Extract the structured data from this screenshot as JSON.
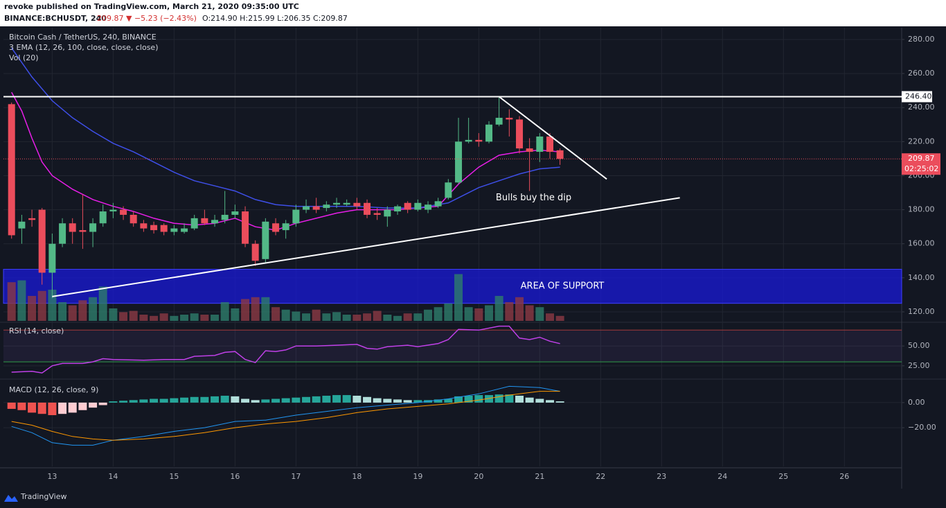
{
  "chart_data": {
    "type": "candlestick",
    "header": {
      "published": "revoke published on TradingView.com, March 21, 2020 09:35:00 UTC",
      "symbol": "BINANCE:BCHUSDT, 240",
      "last": "209.87 ▼ −5.23 (−2.43%)",
      "ohlc": "O:214.90 H:215.99 L:206.35 C:209.87"
    },
    "title": "Bitcoin Cash / TetherUS, 240, BINANCE",
    "ema_label": "3 EMA (12, 26, 100, close, close, close)",
    "volume_label": "Vol (20)",
    "footer": "TradingView",
    "xlim": [
      12.2,
      26.94
    ],
    "xticks": [
      13,
      14,
      15,
      16,
      17,
      18,
      19,
      20,
      21,
      22,
      23,
      24,
      25,
      26
    ],
    "ylim": [
      114.7,
      286.9
    ],
    "yticks": [
      {
        "value": 120,
        "label": "120.00"
      },
      {
        "value": 140,
        "label": "140.00"
      },
      {
        "value": 160,
        "label": "160.00"
      },
      {
        "value": 180,
        "label": "180.00"
      },
      {
        "value": 200,
        "label": "200.00"
      },
      {
        "value": 220,
        "label": "220.00"
      },
      {
        "value": 240,
        "label": "240.00"
      },
      {
        "value": 260,
        "label": "260.00"
      },
      {
        "value": 280,
        "label": "280.00"
      }
    ],
    "grid": true,
    "candles": {
      "up_color": "#53b987",
      "down_color": "#eb4d5c",
      "x": [
        12.333,
        12.5,
        12.667,
        12.833,
        13.0,
        13.167,
        13.333,
        13.5,
        13.667,
        13.833,
        14.0,
        14.167,
        14.333,
        14.5,
        14.667,
        14.833,
        15.0,
        15.167,
        15.333,
        15.5,
        15.667,
        15.833,
        16.0,
        16.167,
        16.333,
        16.5,
        16.667,
        16.833,
        17.0,
        17.167,
        17.333,
        17.5,
        17.667,
        17.833,
        18.0,
        18.167,
        18.333,
        18.5,
        18.667,
        18.833,
        19.0,
        19.167,
        19.333,
        19.5,
        19.667,
        19.833,
        20.0,
        20.167,
        20.333,
        20.5,
        20.667,
        20.833,
        21.0,
        21.167,
        21.333
      ],
      "open": [
        242,
        169,
        175,
        180,
        143,
        160,
        172,
        168,
        167,
        172,
        179,
        180,
        177,
        172,
        171,
        171,
        167,
        167,
        169,
        175,
        172,
        174,
        177,
        179,
        160,
        151,
        172,
        168,
        172,
        180,
        182,
        181,
        183,
        183,
        184,
        184,
        178,
        176,
        179,
        184,
        180,
        180,
        182,
        187,
        196,
        220,
        221,
        220,
        230,
        234,
        233,
        216,
        214,
        223,
        214.9
      ],
      "high": [
        243,
        177,
        180,
        181,
        166,
        175,
        175,
        189,
        175,
        183,
        184,
        182,
        179,
        174,
        173,
        172,
        171,
        172,
        177,
        180,
        177,
        191,
        183,
        182,
        162,
        175,
        175,
        174,
        183,
        186,
        187,
        185,
        187,
        186,
        187,
        186,
        181,
        182,
        183,
        185,
        186,
        185,
        187,
        198,
        234,
        234,
        225,
        232,
        246,
        239,
        235,
        222,
        225,
        225,
        215.99
      ],
      "low": [
        163,
        160,
        170,
        136,
        128,
        158,
        160,
        157,
        158,
        170,
        175,
        174,
        170,
        167,
        166,
        165,
        165,
        166,
        168,
        171,
        170,
        172,
        175,
        158,
        147,
        149,
        165,
        163,
        170,
        178,
        178,
        179,
        181,
        182,
        180,
        175,
        174,
        170,
        177,
        178,
        179,
        178,
        181,
        186,
        195,
        219,
        217,
        219,
        229,
        223,
        213,
        191,
        208,
        210,
        206.35
      ],
      "close": [
        165,
        173,
        174,
        143,
        160,
        172,
        167,
        167,
        172,
        179,
        180,
        177,
        172,
        169,
        168,
        167,
        169,
        169,
        175,
        172,
        174,
        177,
        179,
        160,
        150,
        173,
        167,
        172,
        180,
        182,
        180,
        183,
        184,
        184,
        182,
        177,
        177,
        180,
        182,
        180,
        184,
        183,
        185,
        196,
        220,
        221,
        220,
        230,
        234,
        233,
        216,
        214,
        223,
        214,
        209.87
      ]
    },
    "volume": {
      "up_color": "#2e7d6b",
      "down_color": "#8c3a45",
      "ylim": [
        0,
        100
      ],
      "values": [
        62,
        65,
        40,
        48,
        50,
        30,
        25,
        33,
        38,
        55,
        20,
        14,
        16,
        10,
        8,
        12,
        8,
        10,
        12,
        10,
        10,
        30,
        20,
        35,
        38,
        38,
        22,
        18,
        15,
        12,
        18,
        12,
        14,
        10,
        10,
        12,
        16,
        10,
        8,
        12,
        12,
        18,
        22,
        28,
        75,
        22,
        20,
        25,
        40,
        30,
        38,
        25,
        22,
        12,
        8
      ]
    },
    "ema": [
      {
        "color": "#e91ee9",
        "x": [
          12.333,
          12.5,
          12.667,
          12.833,
          13.0,
          13.333,
          13.667,
          14.0,
          14.333,
          14.667,
          15.0,
          15.333,
          15.667,
          16.0,
          16.333,
          16.667,
          17.0,
          17.333,
          17.667,
          18.0,
          18.333,
          18.667,
          19.0,
          19.333,
          19.667,
          20.0,
          20.333,
          20.667,
          21.0,
          21.333
        ],
        "values": [
          249,
          238,
          222,
          208,
          200,
          192,
          186,
          182,
          179,
          175,
          172,
          171,
          172,
          175,
          170,
          168,
          172,
          175,
          178,
          180,
          180,
          180,
          181,
          182,
          195,
          205,
          212,
          214,
          215,
          214
        ]
      },
      {
        "color": "#3e4fe8",
        "x": [
          12.333,
          12.667,
          13.0,
          13.333,
          13.667,
          14.0,
          14.333,
          14.667,
          15.0,
          15.333,
          15.667,
          16.0,
          16.333,
          16.667,
          17.0,
          17.5,
          18.0,
          18.5,
          19.0,
          19.5,
          20.0,
          20.333,
          20.667,
          21.0,
          21.333
        ],
        "values": [
          275,
          258,
          244,
          234,
          226,
          219,
          214,
          208,
          202,
          197,
          194,
          191,
          186,
          183,
          182,
          182,
          182,
          181,
          181,
          184,
          193,
          197,
          201,
          204,
          205
        ]
      }
    ],
    "levels": {
      "resistance": {
        "value": 246.4,
        "label": "246.40"
      },
      "last": {
        "value": 209.87,
        "label": "209.87"
      },
      "countdown": "02:25:02"
    },
    "trendlines": [
      {
        "x": [
          20.333,
          22.1
        ],
        "y": [
          246.4,
          198
        ]
      },
      {
        "x": [
          13.0,
          23.3
        ],
        "y": [
          129,
          187
        ]
      }
    ],
    "support_zone": {
      "low": 125,
      "high": 145,
      "label": "AREA OF SUPPORT",
      "color": "#1a1ad8"
    },
    "annotation": {
      "text": "Bulls buy the dip",
      "x": 20.9,
      "y": 187
    },
    "rsi": {
      "label": "RSI (14, close)",
      "color": "#c040e8",
      "ylim": [
        10,
        79
      ],
      "yticks": [
        {
          "value": 50,
          "label": "50.00"
        },
        {
          "value": 25,
          "label": "25.00"
        }
      ],
      "bands": [
        70,
        30
      ],
      "x": [
        12.333,
        12.667,
        12.833,
        13.0,
        13.167,
        13.5,
        13.667,
        13.833,
        14.0,
        14.5,
        14.833,
        15.167,
        15.333,
        15.667,
        15.833,
        16.0,
        16.167,
        16.333,
        16.5,
        16.667,
        16.833,
        17.0,
        17.333,
        17.667,
        18.0,
        18.167,
        18.333,
        18.5,
        18.833,
        19.0,
        19.333,
        19.5,
        19.667,
        20.0,
        20.333,
        20.5,
        20.667,
        20.833,
        21.0,
        21.167,
        21.333
      ],
      "values": [
        17,
        18,
        16,
        25,
        28,
        28,
        30,
        34,
        33,
        32,
        33,
        33,
        37,
        38,
        42,
        43,
        33,
        29,
        44,
        43,
        45,
        50,
        50,
        51,
        52,
        47,
        46,
        49,
        51,
        49,
        53,
        58,
        71,
        70,
        75,
        75,
        60,
        58,
        61,
        56,
        53
      ]
    },
    "macd": {
      "label": "MACD (12, 26, close, 9)",
      "ylim": [
        -50.9,
        18.2
      ],
      "yticks": [
        {
          "value": 0,
          "label": "0.00"
        },
        {
          "value": -20,
          "label": "−20.00"
        }
      ],
      "hist_colors": {
        "up_rising": "#26a69a",
        "up_falling": "#b2dfdb",
        "down_falling": "#ef5350",
        "down_rising": "#ffcdd2"
      },
      "histogram": [
        -5,
        -6,
        -8,
        -9,
        -10,
        -9,
        -8,
        -6,
        -4,
        -2,
        1,
        1.5,
        2,
        2.5,
        3,
        3,
        3.5,
        4,
        4.5,
        4.5,
        5,
        5.5,
        5,
        3,
        2,
        2.5,
        3,
        3.5,
        4,
        4.5,
        5,
        5.5,
        6,
        6,
        5.5,
        4.5,
        3.5,
        3,
        2.5,
        2,
        2,
        2,
        2.5,
        3,
        5,
        5.5,
        6,
        6,
        6.5,
        6.5,
        5.5,
        4,
        3,
        2,
        1
      ],
      "macd_line": {
        "color": "#2196f3",
        "x": [
          12.333,
          12.667,
          13.0,
          13.333,
          13.667,
          14.0,
          14.5,
          15.0,
          15.5,
          16.0,
          16.5,
          17.0,
          17.5,
          18.0,
          18.5,
          19.0,
          19.5,
          20.0,
          20.5,
          21.0,
          21.333
        ],
        "values": [
          -19,
          -24,
          -32,
          -34,
          -34,
          -30,
          -27,
          -23,
          -20,
          -15,
          -14,
          -10,
          -7,
          -4,
          -2,
          0,
          3,
          7,
          13,
          12,
          9
        ]
      },
      "signal_line": {
        "color": "#ff9800",
        "x": [
          12.333,
          12.667,
          13.0,
          13.333,
          13.667,
          14.0,
          14.5,
          15.0,
          15.5,
          16.0,
          16.5,
          17.0,
          17.5,
          18.0,
          18.5,
          19.0,
          19.5,
          20.0,
          20.5,
          21.0,
          21.333
        ],
        "values": [
          -15,
          -18,
          -23,
          -27,
          -29,
          -30,
          -29,
          -27,
          -24,
          -20,
          -17,
          -15,
          -12,
          -8,
          -5,
          -3,
          -1,
          2,
          6,
          9,
          9
        ]
      }
    }
  }
}
